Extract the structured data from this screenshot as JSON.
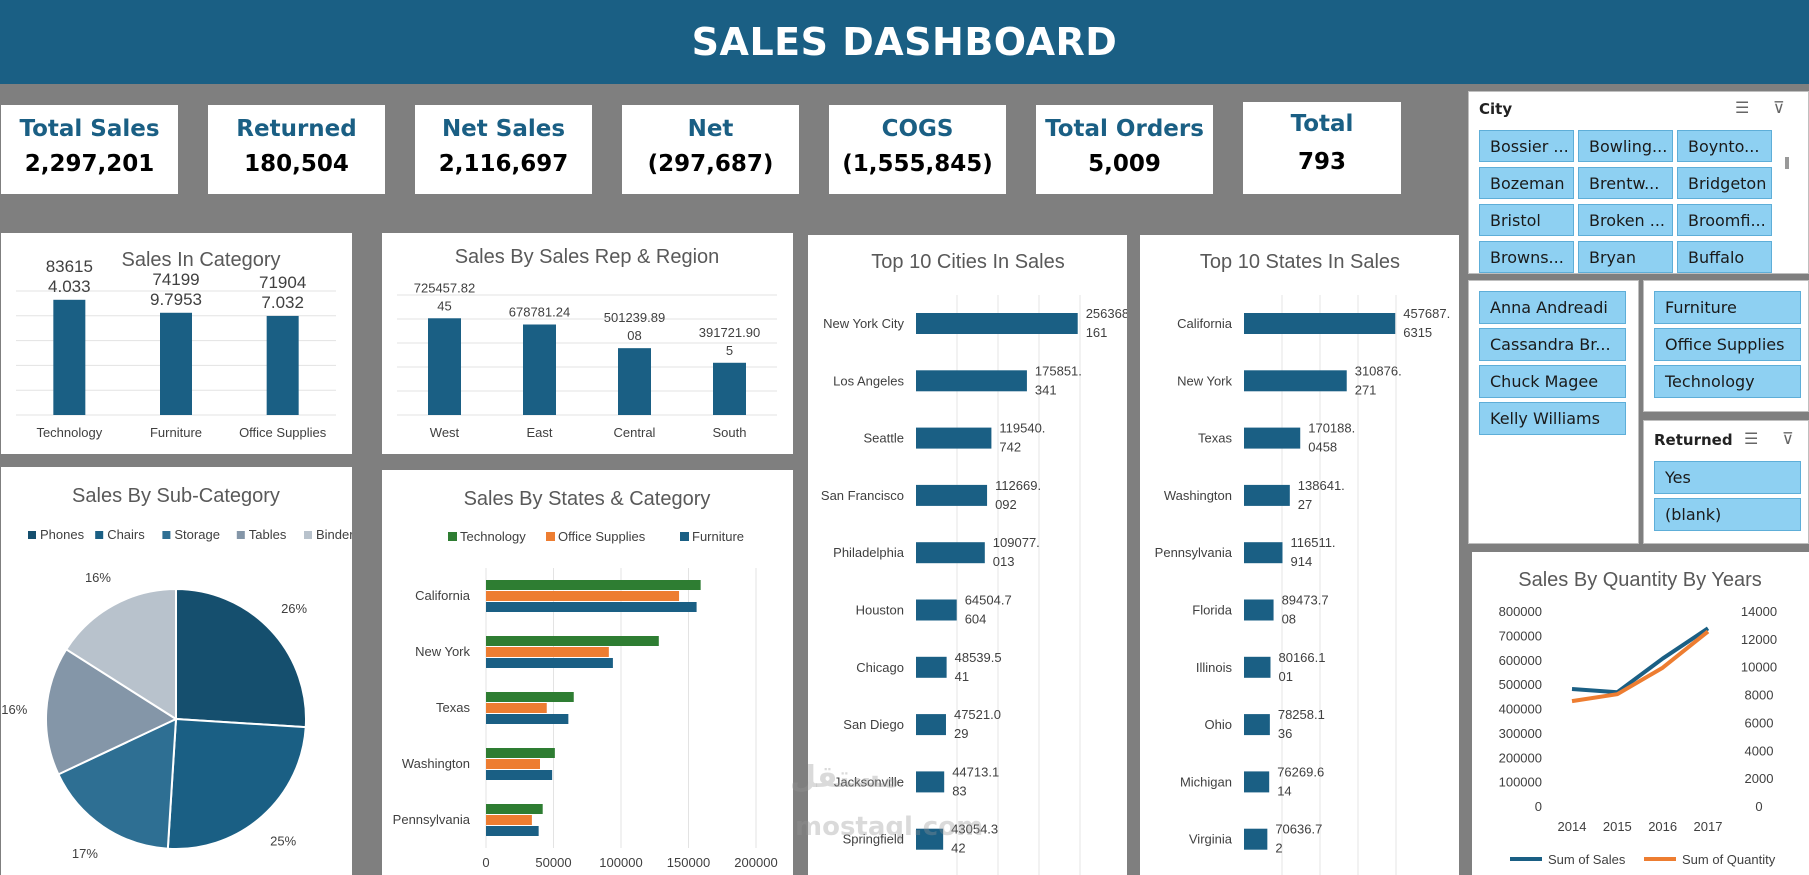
{
  "header": {
    "title": "SALES DASHBOARD"
  },
  "kpis": [
    {
      "label": "Total Sales",
      "value": "2,297,201"
    },
    {
      "label": "Returned",
      "value": "180,504"
    },
    {
      "label": "Net Sales",
      "value": "2,116,697"
    },
    {
      "label": "Net",
      "value": "(297,687)"
    },
    {
      "label": "COGS",
      "value": "(1,555,845)"
    },
    {
      "label": "Total Orders",
      "value": "5,009"
    },
    {
      "label": "Total",
      "value": "793"
    }
  ],
  "slicers": {
    "city": {
      "title": "City",
      "items": [
        "Bossier ...",
        "Bowling...",
        "Boynto...",
        "Bozeman",
        "Brentw...",
        "Bridgeton",
        "Bristol",
        "Broken ...",
        "Broomfi...",
        "Browns...",
        "Bryan",
        "Buffalo"
      ]
    },
    "sales_rep": {
      "items": [
        "Anna Andreadi",
        "Cassandra Br...",
        "Chuck Magee",
        "Kelly Williams"
      ]
    },
    "category": {
      "items": [
        "Furniture",
        "Office Supplies",
        "Technology"
      ]
    },
    "returned": {
      "title": "Returned",
      "items": [
        "Yes",
        "(blank)"
      ]
    }
  },
  "icons": {
    "multiselect": "multi-select-icon",
    "clear_filter": "clear-filter-icon"
  },
  "colors": {
    "primary": "#1a5f84",
    "green": "#2e7d32",
    "orange": "#ed7d31",
    "slicer": "#8ed0f2"
  },
  "watermark": {
    "arabic": "مستقل",
    "latin": "mostaql.com"
  },
  "chart_data": [
    {
      "id": "category",
      "type": "bar",
      "title": "Sales In Category",
      "categories": [
        "Technology",
        "Furniture",
        "Office Supplies"
      ],
      "values": [
        836154.033,
        741999.7953,
        719047.032
      ],
      "labels": [
        [
          "83615",
          "4.033"
        ],
        [
          "74199",
          "9.7953"
        ],
        [
          "71904",
          "7.032"
        ]
      ],
      "ylim": [
        0,
        900000
      ]
    },
    {
      "id": "rep_region",
      "type": "bar",
      "title": "Sales By Sales Rep & Region",
      "categories": [
        "West",
        "East",
        "Central",
        "South"
      ],
      "values": [
        725457.8245,
        678781.24,
        501239.8908,
        391721.905
      ],
      "labels": [
        [
          "725457.82",
          "45"
        ],
        [
          "678781.24"
        ],
        [
          "501239.89",
          "08"
        ],
        [
          "391721.90",
          "5"
        ]
      ],
      "ylim": [
        0,
        900000
      ]
    },
    {
      "id": "subcategory",
      "type": "pie",
      "title": "Sales By Sub-Category",
      "legend": [
        "Phones",
        "Chairs",
        "Storage",
        "Tables",
        "Binders"
      ],
      "values": [
        26,
        25,
        17,
        16,
        16
      ],
      "labels": [
        "26%",
        "25%",
        "17%",
        "16%",
        "16%"
      ],
      "colors": [
        "#154f6e",
        "#1a5f84",
        "#2e6f93",
        "#8496a8",
        "#b8c2cc"
      ]
    },
    {
      "id": "states_category",
      "type": "bar",
      "orientation": "horizontal",
      "title": "Sales By States & Category",
      "categories": [
        "California",
        "New York",
        "Texas",
        "Washington",
        "Pennsylvania"
      ],
      "series": [
        {
          "name": "Technology",
          "color": "#2e7d32",
          "values": [
            159000,
            128000,
            65000,
            51000,
            42000
          ]
        },
        {
          "name": "Office Supplies",
          "color": "#ed7d31",
          "values": [
            143000,
            91000,
            45000,
            40000,
            34000
          ]
        },
        {
          "name": "Furniture",
          "color": "#1a5f84",
          "values": [
            156000,
            94000,
            61000,
            49000,
            39000
          ]
        }
      ],
      "xticks": [
        "0",
        "50000",
        "100000",
        "150000",
        "200000"
      ],
      "xlim": [
        0,
        200000
      ]
    },
    {
      "id": "top_cities",
      "type": "bar",
      "orientation": "horizontal",
      "title": "Top 10 Cities In Sales",
      "categories": [
        "New York City",
        "Los Angeles",
        "Seattle",
        "San Francisco",
        "Philadelphia",
        "Houston",
        "Chicago",
        "San Diego",
        "Jacksonville",
        "Springfield"
      ],
      "values": [
        256368.161,
        175851.341,
        119540.742,
        112669.092,
        109077.013,
        64504.7604,
        48539.541,
        47521.029,
        44713.183,
        43054.342
      ],
      "labels": [
        [
          "256368.",
          "161"
        ],
        [
          "175851.",
          "341"
        ],
        [
          "119540.",
          "742"
        ],
        [
          "112669.",
          "092"
        ],
        [
          "109077.",
          "013"
        ],
        [
          "64504.7",
          "604"
        ],
        [
          "48539.5",
          "41"
        ],
        [
          "47521.0",
          "29"
        ],
        [
          "44713.1",
          "83"
        ],
        [
          "43054.3",
          "42"
        ]
      ],
      "xlim": [
        0,
        260000
      ]
    },
    {
      "id": "top_states",
      "type": "bar",
      "orientation": "horizontal",
      "title": "Top 10 States In Sales",
      "categories": [
        "California",
        "New York",
        "Texas",
        "Washington",
        "Pennsylvania",
        "Florida",
        "Illinois",
        "Ohio",
        "Michigan",
        "Virginia"
      ],
      "values": [
        457687.6315,
        310876.271,
        170188.0458,
        138641.27,
        116511.914,
        89473.708,
        80166.101,
        78258.136,
        76269.614,
        70636.72
      ],
      "labels": [
        [
          "457687.",
          "6315"
        ],
        [
          "310876.",
          "271"
        ],
        [
          "170188.",
          "0458"
        ],
        [
          "138641.",
          "27"
        ],
        [
          "116511.",
          "914"
        ],
        [
          "89473.7",
          "08"
        ],
        [
          "80166.1",
          "01"
        ],
        [
          "78258.1",
          "36"
        ],
        [
          "76269.6",
          "14"
        ],
        [
          "70636.7",
          "2"
        ]
      ],
      "xlim": [
        0,
        460000
      ]
    },
    {
      "id": "quantity_years",
      "type": "line",
      "title": "Sales By Quantity By Years",
      "x": [
        "2014",
        "2015",
        "2016",
        "2017"
      ],
      "series": [
        {
          "name": "Sum of Sales",
          "axis": "left",
          "color": "#1a5f84",
          "values": [
            484000,
            471000,
            609000,
            733000
          ]
        },
        {
          "name": "Sum of Quantity",
          "axis": "right",
          "color": "#ed7d31",
          "values": [
            7600,
            8100,
            10000,
            12600
          ]
        }
      ],
      "yticks_left": [
        "800000",
        "700000",
        "600000",
        "500000",
        "400000",
        "300000",
        "200000",
        "100000",
        "0"
      ],
      "yticks_right": [
        "14000",
        "12000",
        "10000",
        "8000",
        "6000",
        "4000",
        "2000",
        "0"
      ],
      "ylim_left": [
        0,
        800000
      ],
      "ylim_right": [
        0,
        14000
      ]
    }
  ]
}
